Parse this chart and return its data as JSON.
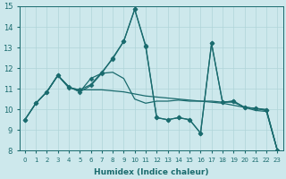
{
  "xlabel": "Humidex (Indice chaleur)",
  "xlim": [
    -0.5,
    23.5
  ],
  "ylim": [
    8,
    15
  ],
  "xticks": [
    0,
    1,
    2,
    3,
    4,
    5,
    6,
    7,
    8,
    9,
    10,
    11,
    12,
    13,
    14,
    15,
    16,
    17,
    18,
    19,
    20,
    21,
    22,
    23
  ],
  "yticks": [
    8,
    9,
    10,
    11,
    12,
    13,
    14,
    15
  ],
  "bg_color": "#cde8ec",
  "grid_color": "#b0d4d8",
  "line_color": "#1a6b6e",
  "lines": [
    {
      "x": [
        0,
        1,
        2,
        3,
        4,
        5,
        6,
        7,
        8,
        9,
        10,
        11,
        12,
        13,
        14,
        15,
        16,
        17,
        18,
        19,
        20,
        21,
        22,
        23
      ],
      "y": [
        9.5,
        10.3,
        10.85,
        11.65,
        11.05,
        10.95,
        10.95,
        10.95,
        10.9,
        10.85,
        10.75,
        10.65,
        10.6,
        10.55,
        10.5,
        10.45,
        10.4,
        10.35,
        10.3,
        10.2,
        10.1,
        10.05,
        10.0,
        8.0
      ],
      "marker": false,
      "lw": 0.9
    },
    {
      "x": [
        0,
        1,
        2,
        3,
        4,
        5,
        6,
        7,
        8,
        9,
        10,
        11,
        12,
        13,
        14,
        15,
        16,
        17,
        18,
        19,
        20,
        21,
        22,
        23
      ],
      "y": [
        9.5,
        10.3,
        10.85,
        11.65,
        11.1,
        10.85,
        11.5,
        11.75,
        12.5,
        13.3,
        14.85,
        13.1,
        9.6,
        9.5,
        9.6,
        9.5,
        8.85,
        13.2,
        10.35,
        10.4,
        10.1,
        10.05,
        9.95,
        8.0
      ],
      "marker": true,
      "lw": 0.9
    },
    {
      "x": [
        2,
        3,
        4,
        5,
        6,
        7,
        8,
        9,
        10,
        11,
        12,
        13,
        14,
        15,
        16,
        17,
        18,
        19,
        20,
        21,
        22,
        23
      ],
      "y": [
        10.85,
        11.65,
        11.1,
        10.85,
        11.15,
        11.75,
        11.8,
        11.5,
        10.5,
        10.3,
        10.4,
        10.4,
        10.45,
        10.4,
        10.4,
        10.4,
        10.35,
        10.35,
        10.1,
        9.95,
        9.9,
        8.0
      ],
      "marker": false,
      "lw": 0.9
    },
    {
      "x": [
        0,
        1,
        2,
        3,
        4,
        5,
        6,
        7,
        8,
        9,
        10,
        11,
        12,
        13,
        14,
        15,
        16,
        17,
        18,
        19,
        20,
        21,
        22,
        23
      ],
      "y": [
        9.5,
        10.3,
        10.85,
        11.65,
        11.05,
        10.95,
        11.2,
        11.8,
        12.45,
        13.3,
        14.85,
        13.05,
        9.6,
        9.5,
        9.6,
        9.5,
        8.85,
        13.2,
        10.35,
        10.4,
        10.1,
        10.05,
        9.95,
        8.0
      ],
      "marker": true,
      "lw": 0.9
    }
  ]
}
